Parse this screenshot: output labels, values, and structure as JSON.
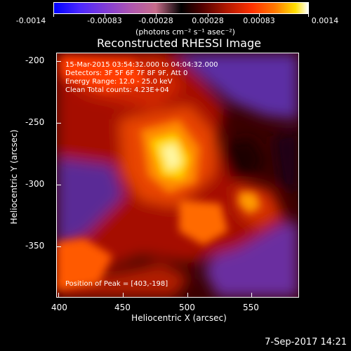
{
  "colorbar": {
    "ticks": [
      "-0.0014",
      "-0.00083",
      "-0.00028",
      "0.00028",
      "0.00083",
      "0.0014"
    ],
    "units": "(photons cm⁻² s⁻¹ asec⁻²)"
  },
  "title": "Reconstructed RHESSI Image",
  "overlay": {
    "time_range": "15-Mar-2015 03:54:32.000 to 04:04:32.000",
    "detectors": "Detectors: 3F 5F 6F 7F 8F 9F, Att 0",
    "energy_range": "Energy Range: 12.0 - 25.0 keV",
    "clean_counts": "Clean     Total counts: 4.23E+04",
    "peak": "Position of Peak = [403,-198]"
  },
  "axes": {
    "x_label": "Heliocentric X (arcsec)",
    "y_label": "Heliocentric Y (arcsec)",
    "x_ticks": [
      "400",
      "450",
      "500",
      "550"
    ],
    "y_ticks": [
      "-200",
      "-250",
      "-300",
      "-350"
    ]
  },
  "footer": {
    "date": "7-Sep-2017 14:21"
  }
}
